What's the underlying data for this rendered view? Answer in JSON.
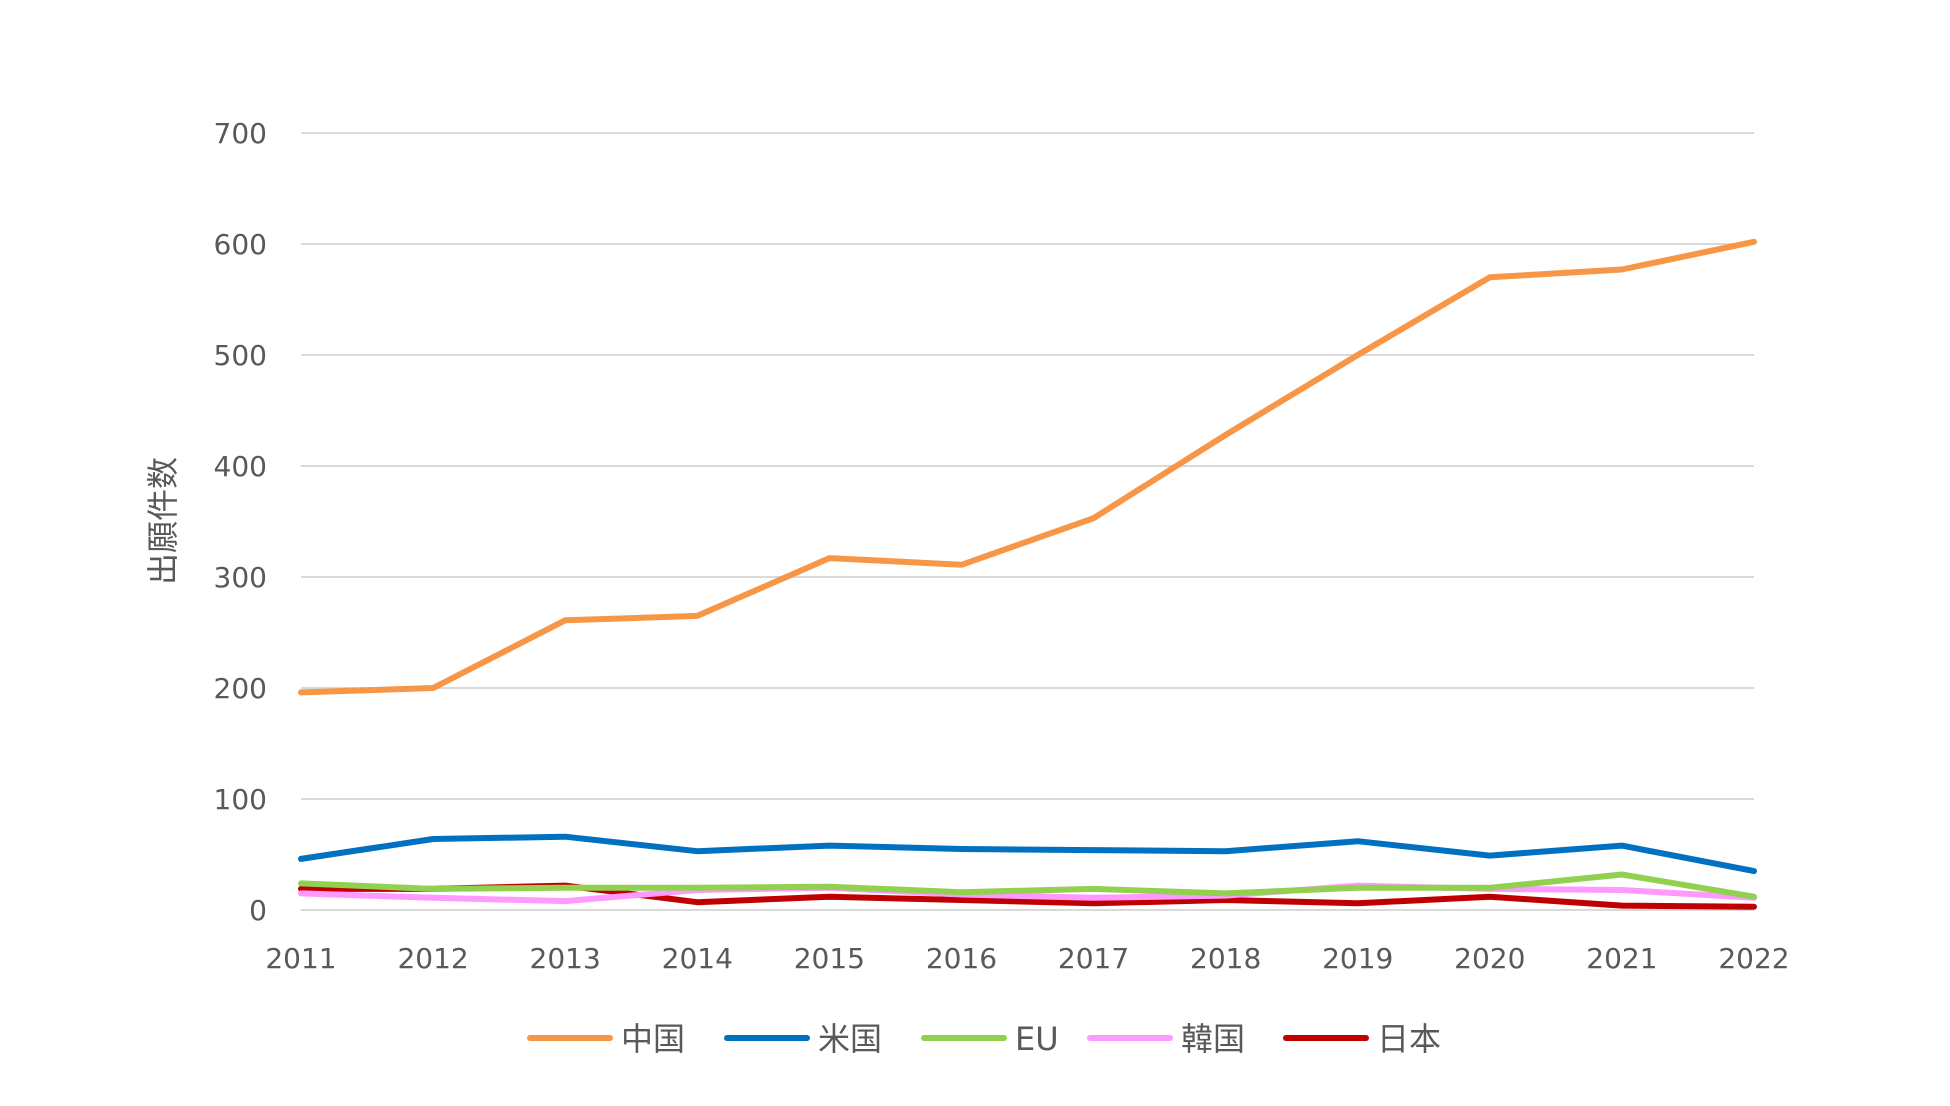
{
  "chart_data": {
    "type": "line",
    "title": "",
    "xlabel": "",
    "ylabel": "出願件数",
    "ylim": [
      0,
      700
    ],
    "yticks": [
      0,
      100,
      200,
      300,
      400,
      500,
      600,
      700
    ],
    "grid": true,
    "legend_position": "bottom",
    "categories": [
      "2011",
      "2012",
      "2013",
      "2014",
      "2015",
      "2016",
      "2017",
      "2018",
      "2019",
      "2020",
      "2021",
      "2022"
    ],
    "series": [
      {
        "name": "中国",
        "color": "#F79646",
        "values": [
          196,
          200,
          261,
          265,
          317,
          311,
          353,
          428,
          500,
          570,
          577,
          602
        ]
      },
      {
        "name": "米国",
        "color": "#0070C0",
        "values": [
          46,
          64,
          66,
          53,
          58,
          55,
          54,
          53,
          62,
          49,
          58,
          35
        ]
      },
      {
        "name": "EU",
        "color": "#92D050",
        "values": [
          24,
          19,
          20,
          20,
          21,
          16,
          19,
          15,
          20,
          20,
          32,
          12
        ]
      },
      {
        "name": "韓国",
        "color": "#FF99FF",
        "values": [
          15,
          11,
          8,
          18,
          20,
          14,
          11,
          13,
          22,
          19,
          18,
          11
        ]
      },
      {
        "name": "日本",
        "color": "#C00000",
        "values": [
          19,
          19,
          22,
          7,
          12,
          9,
          6,
          9,
          6,
          12,
          4,
          3
        ]
      }
    ]
  }
}
